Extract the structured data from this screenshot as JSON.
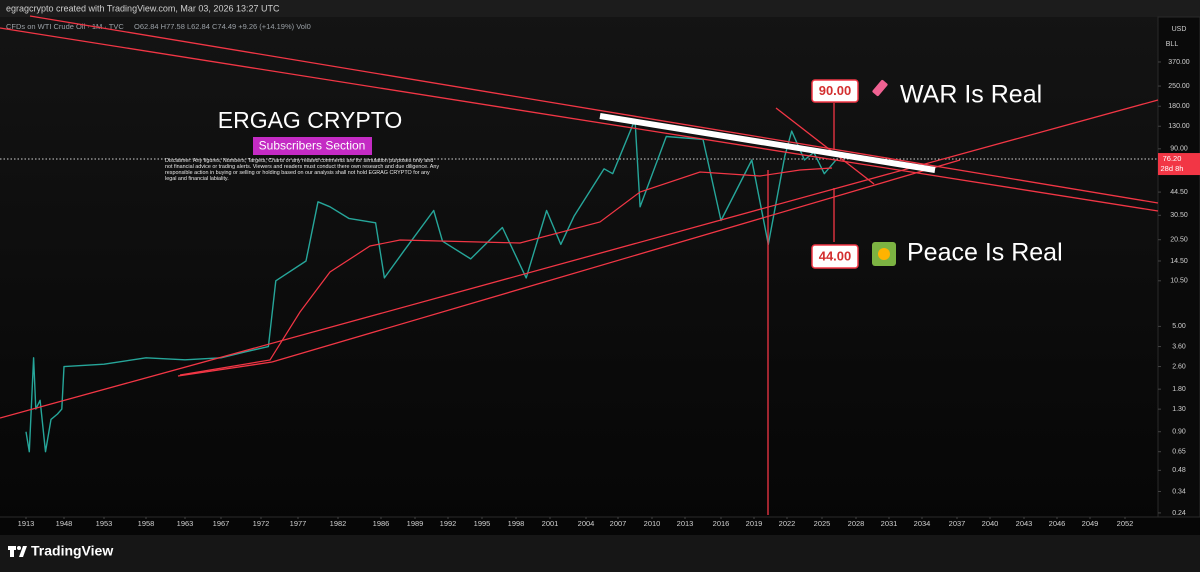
{
  "header": "egragcrypto created with TradingView.com, Mar 03, 2026 13:27 UTC",
  "chart_data": {
    "type": "line",
    "title": "CFDs on WTI Crude Oil · 1M · TVC",
    "legend": "O62.84 H77.58 L62.84 C74.49 +9.26 (+14.19%) Vol0",
    "currency": "USD",
    "unit": "BLL",
    "log_scale": true,
    "color": "#26a69a",
    "x": [
      1913,
      1916,
      1920,
      1922,
      1926,
      1931,
      1936,
      1942,
      1946,
      1948,
      1953,
      1958,
      1963,
      1967,
      1970,
      1973,
      1974,
      1978,
      1979.5,
      1981,
      1983,
      1985.5,
      1986.3,
      1988,
      1990.7,
      1991.5,
      1994,
      1996.8,
      1998.9,
      2000.7,
      2001.9,
      2003,
      2005.7,
      2006.5,
      2008.5,
      2008.95,
      2011.3,
      2014.5,
      2016,
      2018.8,
      2020.3,
      2021.8,
      2022.4,
      2023.5,
      2024.3,
      2025.2,
      2026.2
    ],
    "values": [
      0.9,
      0.65,
      3.0,
      1.3,
      1.5,
      0.65,
      1.1,
      1.2,
      1.3,
      2.6,
      2.7,
      3.0,
      2.9,
      3.0,
      3.3,
      3.6,
      10.5,
      14.5,
      38,
      35,
      29,
      27,
      11,
      17,
      33,
      20,
      15,
      25,
      11,
      33,
      19,
      30,
      65,
      60,
      145,
      35,
      110,
      105,
      28,
      75,
      19,
      80,
      120,
      75,
      85,
      60,
      74.49
    ],
    "xticks": [
      1913,
      1948,
      1953,
      1958,
      1963,
      1967,
      1972,
      1977,
      1982,
      1986,
      1989,
      1992,
      1995,
      1998,
      2001,
      2004,
      2007,
      2010,
      2013,
      2016,
      2019,
      2022,
      2025,
      2028,
      2031,
      2034,
      2037,
      2040,
      2043,
      2046,
      2049,
      2052
    ],
    "ylim": [
      0.232,
      757
    ],
    "yticks": [
      {
        "value": 370,
        "label": "370.00"
      },
      {
        "value": 250,
        "label": "250.00"
      },
      {
        "value": 180,
        "label": "180.00"
      },
      {
        "value": 130,
        "label": "130.00"
      },
      {
        "value": 90,
        "label": "90.00"
      },
      {
        "value": 44.5,
        "label": "44.50"
      },
      {
        "value": 30.5,
        "label": "30.50"
      },
      {
        "value": 20.5,
        "label": "20.50"
      },
      {
        "value": 14.5,
        "label": "14.50"
      },
      {
        "value": 10.5,
        "label": "10.50"
      },
      {
        "value": 5,
        "label": "5.00"
      },
      {
        "value": 3.6,
        "label": "3.60"
      },
      {
        "value": 2.6,
        "label": "2.60"
      },
      {
        "value": 1.8,
        "label": "1.80"
      },
      {
        "value": 1.3,
        "label": "1.30"
      },
      {
        "value": 0.9,
        "label": "0.90"
      },
      {
        "value": 0.65,
        "label": "0.65"
      },
      {
        "value": 0.48,
        "label": "0.48"
      },
      {
        "value": 0.34,
        "label": "0.34"
      },
      {
        "value": 0.24,
        "label": "0.24"
      }
    ],
    "last_price": {
      "value": 76.2,
      "label": "76.20"
    },
    "countdown": "28d 8h",
    "annotations": {
      "brand": "ERGAG CRYPTO",
      "section": "Subscribers Section",
      "disclaimer": "Disclaimer: Any figures, Numbers, Targets, Charts or any related comments are for simulation purposes only and not financial advice or trading alerts. Viewers and readers must conduct there own research and due diligence. Any responsible action in buying or selling or holding based on our analysis shall not hold EGRAG CRYPTO for any legal and financial labiality.",
      "war_target": "90.00",
      "war_text": "WAR Is Real",
      "peace_target": "44.00",
      "peace_text": "Peace Is Real"
    }
  },
  "footer": "TradingView"
}
